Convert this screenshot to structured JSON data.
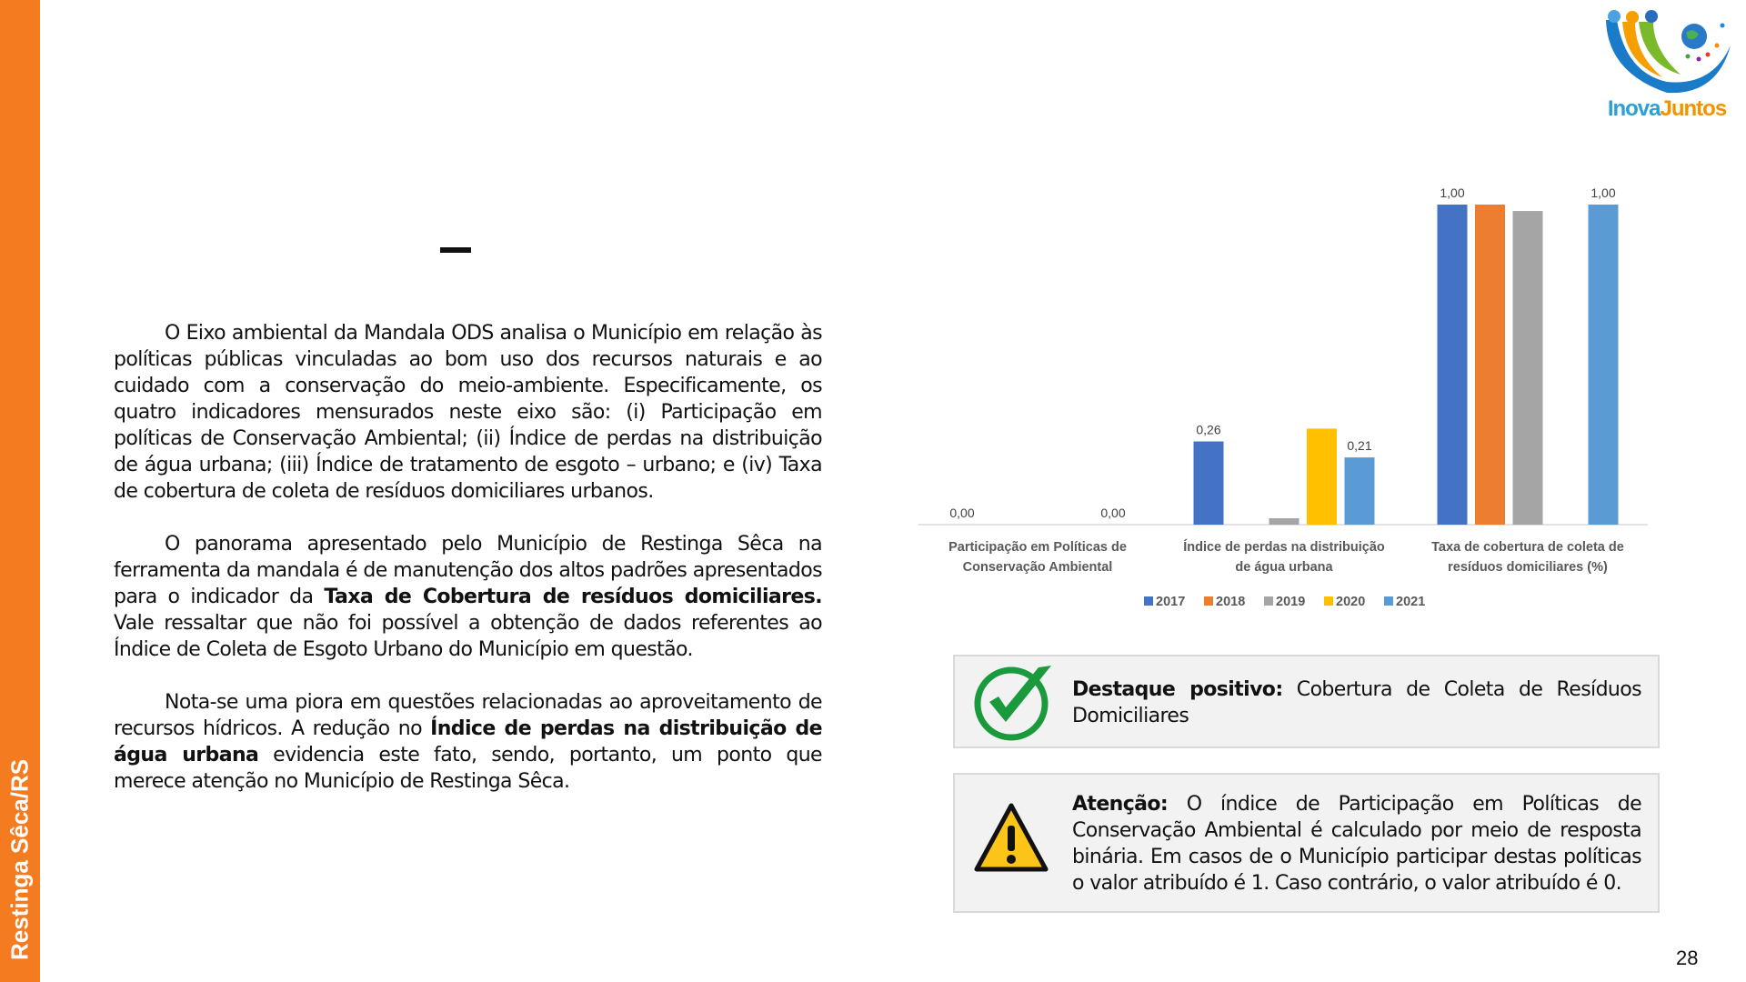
{
  "sidebar": {
    "label": "Restinga Sêca/RS",
    "color": "#f47b20"
  },
  "logo": {
    "text_part1": "Inova",
    "text_part2": "Juntos"
  },
  "page_number": "28",
  "body": {
    "p1": "O Eixo ambiental da Mandala ODS analisa o Município em relação às políticas públicas vinculadas ao bom uso dos recursos naturais e ao cuidado com a conservação do meio-ambiente. Especificamente, os quatro indicadores mensurados neste eixo são: (i) Participação em políticas de Conservação Ambiental; (ii) Índice de perdas na distribuição de água urbana; (iii) Índice de tratamento de esgoto – urbano; e (iv) Taxa de cobertura de coleta de resíduos domiciliares urbanos.",
    "p2_a": "O panorama apresentado pelo Município de Restinga Sêca na ferramenta da mandala é de manutenção dos altos padrões apresentados para o indicador da ",
    "p2_bold": "Taxa de Cobertura de resíduos domiciliares.",
    "p2_b": " Vale ressaltar que não foi possível a obtenção de dados referentes ao Índice de Coleta de Esgoto Urbano do Município em questão.",
    "p3_a": "Nota-se uma piora em questões relacionadas ao aproveitamento de recursos hídricos. A redução no ",
    "p3_bold": "Índice de perdas na distribuição de água urbana",
    "p3_b": " evidencia este fato, sendo, portanto, um ponto que merece atenção no Município de Restinga Sêca."
  },
  "highlight": {
    "label": "Destaque positivo:",
    "text": " Cobertura de Coleta de Resíduos Domiciliares",
    "icon": "check-circle-icon"
  },
  "attention": {
    "label": "Atenção:",
    "text": " O índice de Participação em Políticas de Conservação Ambiental é calculado por meio de resposta binária. Em casos de o Município participar destas políticas o valor atribuído é 1. Caso contrário, o valor atribuído é 0.",
    "icon": "warning-icon"
  },
  "chart_data": {
    "type": "bar",
    "categories": [
      "Participação em Políticas de Conservação Ambiental",
      "Índice de perdas na distribuição de água urbana",
      "Taxa de cobertura de coleta de resíduos domiciliares (%)"
    ],
    "series": [
      {
        "name": "2017",
        "color": "#4472c4",
        "values": [
          0,
          0.26,
          1.0
        ],
        "labels": [
          "0,00",
          "0,26",
          "1,00"
        ]
      },
      {
        "name": "2018",
        "color": "#ed7d31",
        "values": [
          null,
          null,
          1.0
        ],
        "labels": [
          null,
          null,
          null
        ]
      },
      {
        "name": "2019",
        "color": "#a5a5a5",
        "values": [
          null,
          0.02,
          0.98
        ],
        "labels": [
          null,
          null,
          null
        ]
      },
      {
        "name": "2020",
        "color": "#ffc000",
        "values": [
          null,
          0.3,
          null
        ],
        "labels": [
          null,
          null,
          null
        ]
      },
      {
        "name": "2021",
        "color": "#5b9bd5",
        "values": [
          0,
          0.21,
          1.0
        ],
        "labels": [
          "0,00",
          "0,21",
          "1,00"
        ]
      }
    ],
    "ylim": [
      0,
      1
    ],
    "grid": false,
    "legend": "bottom"
  }
}
